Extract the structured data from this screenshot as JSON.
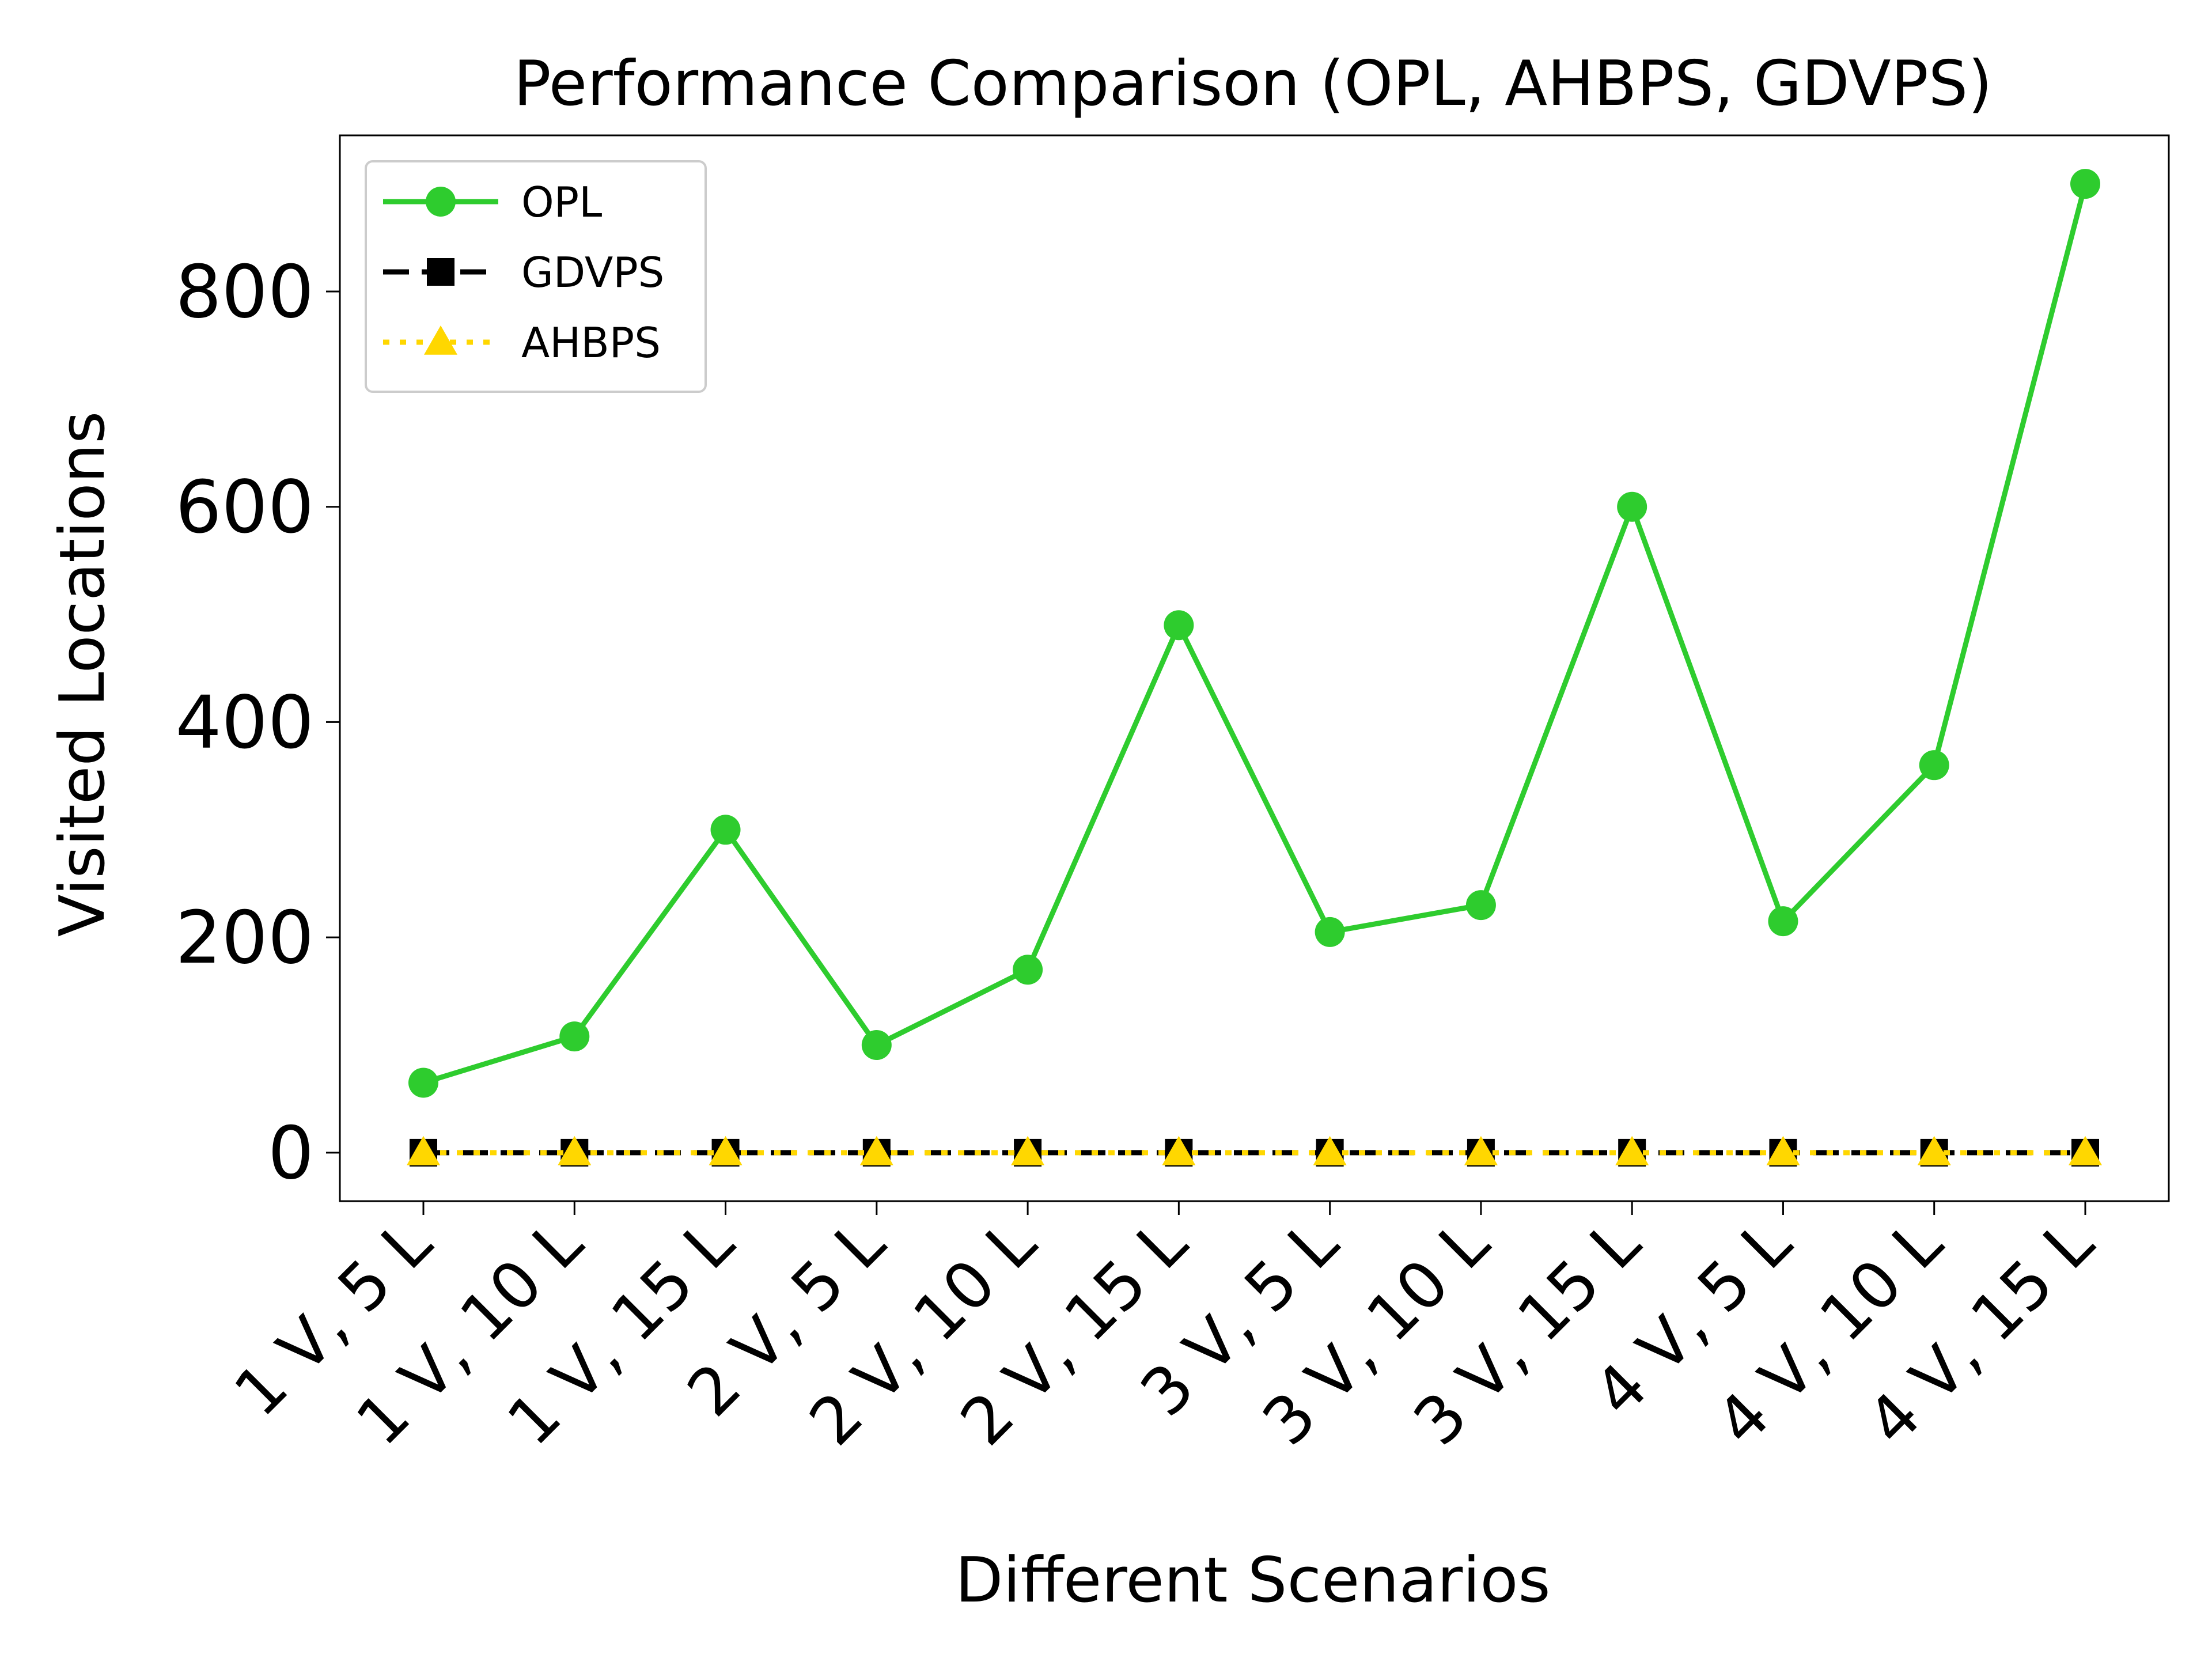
{
  "chart_data": {
    "type": "line",
    "title": "Performance Comparison (OPL, AHBPS, GDVPS)",
    "xlabel": "Different Scenarios",
    "ylabel": "Visited Locations",
    "categories": [
      "1 V, 5 L",
      "1 V, 10 L",
      "1 V, 15 L",
      "2 V, 5 L",
      "2 V, 10 L",
      "2 V, 15 L",
      "3 V, 5 L",
      "3 V, 10 L",
      "3 V, 15 L",
      "4 V, 5 L",
      "4 V, 10 L",
      "4 V, 15 L"
    ],
    "ylim": [
      -45,
      945
    ],
    "yticks": [
      "0",
      "200",
      "400",
      "600",
      "800"
    ],
    "grid": false,
    "legend_position": "top-left",
    "series": [
      {
        "name": "OPL",
        "color": "#2ecc2e",
        "marker": "circle",
        "linestyle": "solid",
        "values": [
          65,
          108,
          300,
          100,
          170,
          490,
          205,
          230,
          600,
          215,
          360,
          900
        ]
      },
      {
        "name": "GDVPS",
        "color": "#000000",
        "marker": "square",
        "linestyle": "dashed",
        "values": [
          0,
          0,
          0,
          0,
          0,
          0,
          0,
          0,
          0,
          0,
          0,
          0
        ]
      },
      {
        "name": "AHBPS",
        "color": "#ffd700",
        "marker": "triangle",
        "linestyle": "dotted",
        "values": [
          0,
          0,
          0,
          0,
          0,
          0,
          0,
          0,
          0,
          0,
          0,
          0
        ]
      }
    ]
  }
}
